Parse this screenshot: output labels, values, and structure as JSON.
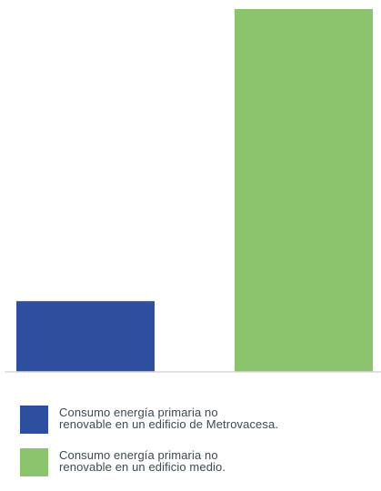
{
  "chart_data": {
    "type": "bar",
    "series": [
      {
        "name": "Consumo energía primaria no renovable en un edificio de Metrovacesa.",
        "legend_lines": [
          "Consumo energía primaria no",
          "renovable en un edificio de Metrovacesa."
        ],
        "value": 19.5,
        "color": "#2e4e9e"
      },
      {
        "name": "Consumo energía primaria no renovable en un edificio medio.",
        "legend_lines": [
          "Consumo energía primaria no",
          "renovable en un edificio medio."
        ],
        "value": 100,
        "color": "#8cc46e"
      }
    ],
    "ylim": [
      0,
      100
    ],
    "axis_color": "#d8d8d8",
    "grid": false,
    "legend_position": "bottom"
  }
}
